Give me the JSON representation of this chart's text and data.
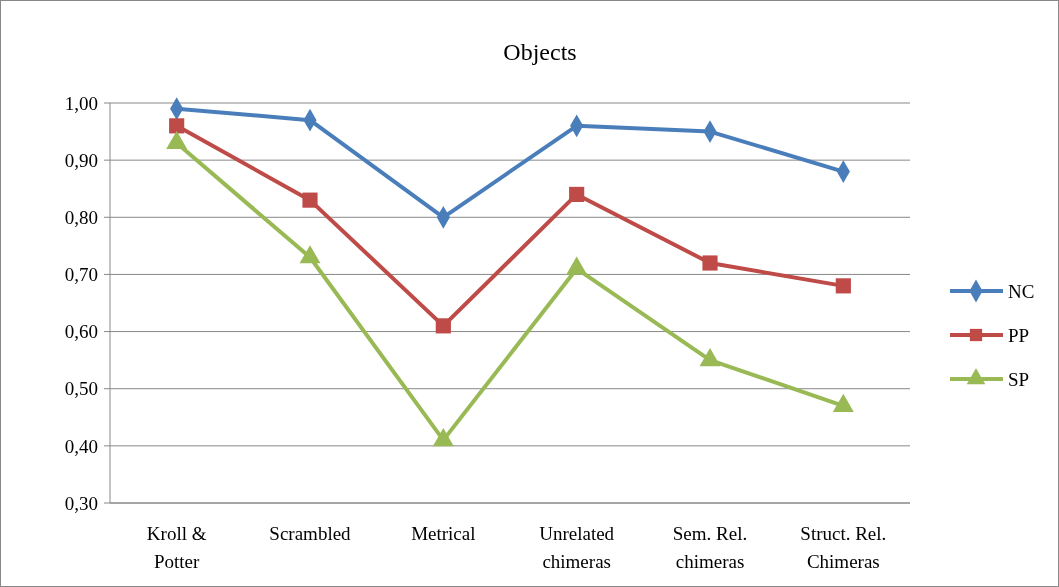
{
  "chart_data": {
    "type": "line",
    "title": "Objects",
    "categories": [
      "Kroll & Potter",
      "Scrambled",
      "Metrical",
      "Unrelated chimeras",
      "Sem. Rel. chimeras",
      "Struct. Rel. Chimeras"
    ],
    "series": [
      {
        "name": "NC",
        "color": "#4a7ebb",
        "marker": "diamond",
        "values": [
          0.99,
          0.97,
          0.8,
          0.96,
          0.95,
          0.88
        ]
      },
      {
        "name": "PP",
        "color": "#be4b48",
        "marker": "square",
        "values": [
          0.96,
          0.83,
          0.61,
          0.84,
          0.72,
          0.68
        ]
      },
      {
        "name": "SP",
        "color": "#98b954",
        "marker": "triangle",
        "values": [
          0.93,
          0.73,
          0.41,
          0.71,
          0.55,
          0.47
        ]
      }
    ],
    "ylim": [
      0.3,
      1.0
    ],
    "yticks": [
      {
        "value": 0.3,
        "label": "0,30"
      },
      {
        "value": 0.4,
        "label": "0,40"
      },
      {
        "value": 0.5,
        "label": "0,50"
      },
      {
        "value": 0.6,
        "label": "0,60"
      },
      {
        "value": 0.7,
        "label": "0,70"
      },
      {
        "value": 0.8,
        "label": "0,80"
      },
      {
        "value": 0.9,
        "label": "0,90"
      },
      {
        "value": 1.0,
        "label": "1,00"
      }
    ],
    "grid": "y",
    "legend": "right",
    "line_style": "solid"
  }
}
